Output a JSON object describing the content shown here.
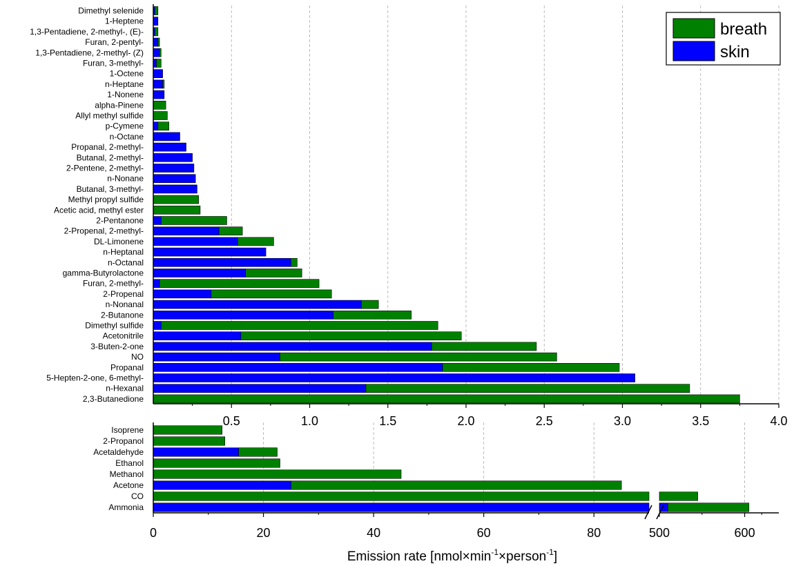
{
  "chart_data": [
    {
      "type": "bar",
      "orientation": "horizontal",
      "stacked": true,
      "categories": [
        "Dimethyl selenide",
        "1-Heptene",
        "1,3-Pentadiene, 2-methyl-, (E)-",
        "Furan, 2-pentyl-",
        "1,3-Pentadiene, 2-methyl- (Z)",
        "Furan, 3-methyl-",
        "1-Octene",
        "n-Heptane",
        "1-Nonene",
        "alpha-Pinene",
        "Allyl methyl sulfide",
        "p-Cymene",
        "n-Octane",
        "Propanal, 2-methyl-",
        "Butanal, 2-methyl-",
        "2-Pentene, 2-methyl-",
        "n-Nonane",
        "Butanal, 3-methyl-",
        "Methyl propyl sulfide",
        "Acetic acid, methyl ester",
        "2-Pentanone",
        "2-Propenal, 2-methyl-",
        "DL-Limonene",
        "n-Heptanal",
        "n-Octanal",
        "gamma-Butyrolactone",
        "Furan, 2-methyl-",
        "2-Propenal",
        "n-Nonanal",
        "2-Butanone",
        "Dimethyl sulfide",
        "Acetonitrile",
        "3-Buten-2-one",
        "NO",
        "Propanal",
        "5-Hepten-2-one, 6-methyl-",
        "n-Hexanal",
        "2,3-Butanedione"
      ],
      "series": [
        {
          "name": "skin",
          "values": [
            0.01,
            0.03,
            0.01,
            0.03,
            0.04,
            0.02,
            0.06,
            0.06,
            0.07,
            0.0,
            0.0,
            0.03,
            0.17,
            0.21,
            0.25,
            0.26,
            0.27,
            0.28,
            0.0,
            0.0,
            0.05,
            0.42,
            0.54,
            0.72,
            0.88,
            0.59,
            0.04,
            0.37,
            1.33,
            1.15,
            0.05,
            0.56,
            1.78,
            0.81,
            1.85,
            3.08,
            1.36,
            0.0
          ]
        },
        {
          "name": "breath",
          "values": [
            0.02,
            0.0,
            0.02,
            0.01,
            0.01,
            0.03,
            0.0,
            0.01,
            0.0,
            0.08,
            0.09,
            0.07,
            0.0,
            0.0,
            0.0,
            0.0,
            0.0,
            0.0,
            0.29,
            0.3,
            0.42,
            0.15,
            0.23,
            0.0,
            0.04,
            0.36,
            1.02,
            0.77,
            0.11,
            0.5,
            1.77,
            1.41,
            0.67,
            1.77,
            1.13,
            0.0,
            2.07,
            3.75
          ]
        }
      ],
      "xlim": [
        0,
        4.0
      ],
      "x_ticks": [
        "0.5",
        "1.0",
        "1.5",
        "2.0",
        "2.5",
        "3.0",
        "3.5",
        "4.0"
      ],
      "x_tick_values": [
        0.5,
        1.0,
        1.5,
        2.0,
        2.5,
        3.0,
        3.5,
        4.0
      ],
      "grid": "vertical dashed",
      "legend": {
        "placement": "top-right",
        "entries": [
          "breath",
          "skin"
        ]
      }
    },
    {
      "type": "bar",
      "orientation": "horizontal",
      "stacked": true,
      "axis_break": [
        90,
        500
      ],
      "categories": [
        "Isoprene",
        "2-Propanol",
        "Acetaldehyde",
        "Ethanol",
        "Methanol",
        "Acetone",
        "CO",
        "Ammonia"
      ],
      "series": [
        {
          "name": "skin",
          "values": [
            0,
            0,
            15.5,
            0,
            0,
            25,
            0,
            510
          ]
        },
        {
          "name": "breath",
          "values": [
            12.5,
            13,
            7,
            23,
            45,
            60,
            545,
            95
          ]
        }
      ],
      "xlim_left": [
        0,
        90
      ],
      "xlim_right": [
        500,
        640
      ],
      "x_ticks": [
        "0",
        "20",
        "40",
        "60",
        "80",
        "500",
        "600"
      ],
      "x_tick_values": [
        0,
        20,
        40,
        60,
        80,
        500,
        600
      ],
      "xlabel": "Emission rate [nmol×min",
      "xlabel_sup1": "-1",
      "xlabel_mid": "×person",
      "xlabel_sup2": "-1",
      "xlabel_end": "]",
      "grid": "vertical dashed"
    }
  ],
  "colors": {
    "breath": "#008000",
    "skin": "#0000ff",
    "bar_outline": "#000000",
    "grid": "#aaaaaa"
  }
}
